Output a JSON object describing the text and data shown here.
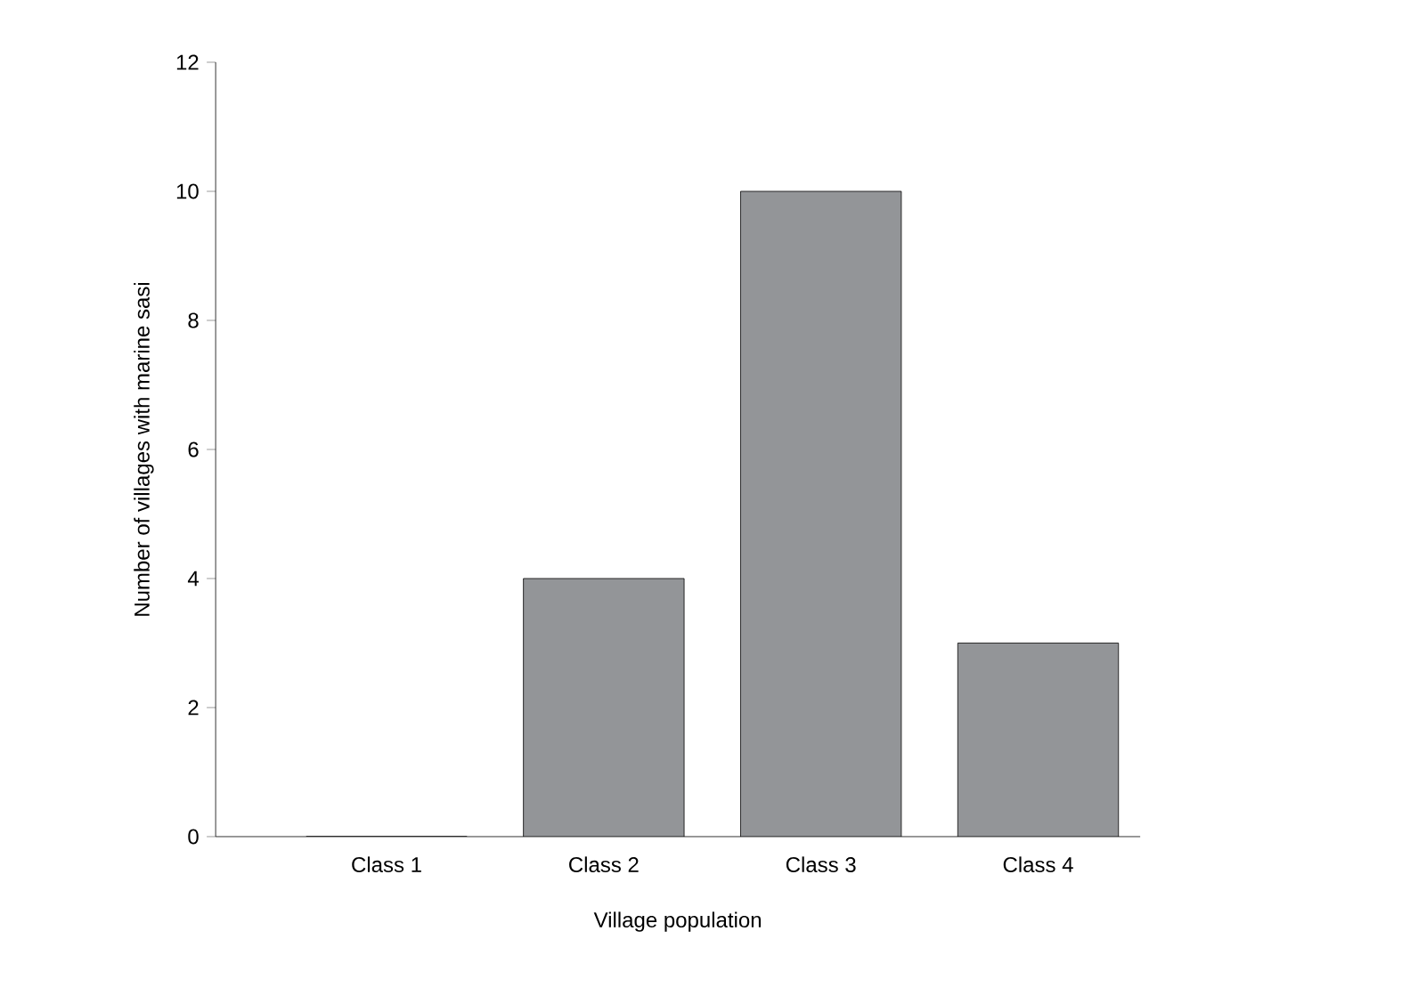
{
  "chart_data": {
    "type": "bar",
    "xlabel": "Village population",
    "ylabel": "Number of villages with marine sasi",
    "categories": [
      "Class 1",
      "Class 2",
      "Class 3",
      "Class 4"
    ],
    "values": [
      0,
      4,
      10,
      3
    ],
    "color": "#939598",
    "ylim": [
      0,
      12
    ],
    "yticks": [
      0,
      2,
      4,
      6,
      8,
      10,
      12
    ],
    "grid": false
  }
}
